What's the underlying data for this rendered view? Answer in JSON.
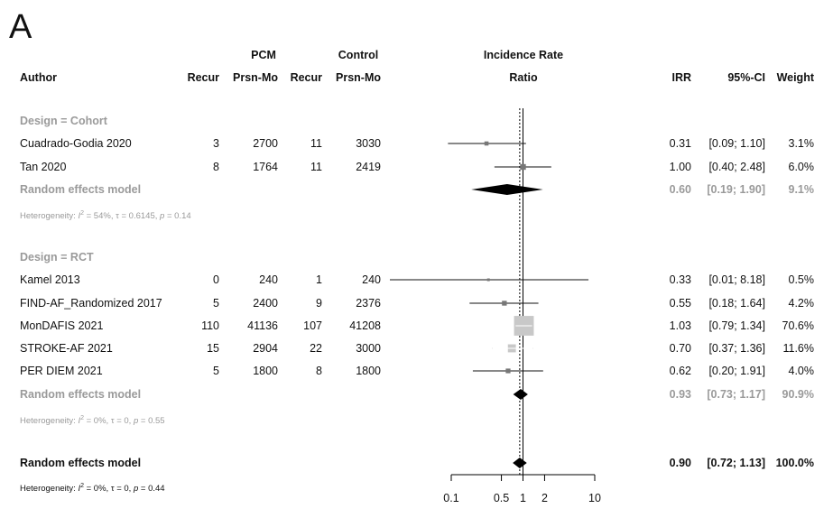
{
  "panel_label": "A",
  "headers": {
    "pcm": "PCM",
    "control": "Control",
    "irr_title_1": "Incidence Rate",
    "irr_title_2": "Ratio",
    "author": "Author",
    "recur_pcm": "Recur",
    "prsn_pcm": "Prsn-Mo",
    "recur_ctrl": "Recur",
    "prsn_ctrl": "Prsn-Mo",
    "irr": "IRR",
    "ci": "95%-CI",
    "weight": "Weight"
  },
  "chart_data": {
    "type": "forest",
    "x_scale": "log",
    "xlim": [
      0.1,
      10
    ],
    "ticks": [
      {
        "v": 0.1,
        "label": "0.1"
      },
      {
        "v": 0.5,
        "label": "0.5"
      },
      {
        "v": 1,
        "label": "1"
      },
      {
        "v": 2,
        "label": "2"
      },
      {
        "v": 10,
        "label": "10"
      }
    ],
    "null_line": 1,
    "overall_line": 0.9,
    "groups": [
      {
        "label": "Design = Cohort",
        "studies": [
          {
            "author": "Cuadrado-Godia 2020",
            "pcm_recur": "3",
            "pcm_prsn": "2700",
            "ctrl_recur": "11",
            "ctrl_prsn": "3030",
            "irr": 0.31,
            "lo": 0.09,
            "hi": 1.1,
            "irr_text": "0.31",
            "ci_text": "[0.09; 1.10]",
            "weight_text": "3.1%",
            "weight": 3.1
          },
          {
            "author": "Tan 2020",
            "pcm_recur": "8",
            "pcm_prsn": "1764",
            "ctrl_recur": "11",
            "ctrl_prsn": "2419",
            "irr": 1.0,
            "lo": 0.4,
            "hi": 2.48,
            "irr_text": "1.00",
            "ci_text": "[0.40; 2.48]",
            "weight_text": "6.0%",
            "weight": 6.0
          }
        ],
        "model": {
          "label": "Random effects model",
          "irr": 0.6,
          "lo": 0.19,
          "hi": 1.9,
          "irr_text": "0.60",
          "ci_text": "[0.19; 1.90]",
          "weight_text": "9.1%"
        },
        "heterogeneity": {
          "prefix": "Heterogeneity: ",
          "i2": "I",
          "rest": " = 54%, τ = 0.6145, ",
          "p": "p",
          "pval": " = 0.14"
        }
      },
      {
        "label": "Design = RCT",
        "studies": [
          {
            "author": "Kamel 2013",
            "pcm_recur": "0",
            "pcm_prsn": "240",
            "ctrl_recur": "1",
            "ctrl_prsn": "240",
            "irr": 0.33,
            "lo": 0.01,
            "hi": 8.18,
            "irr_text": "0.33",
            "ci_text": "[0.01; 8.18]",
            "weight_text": "0.5%",
            "weight": 0.5
          },
          {
            "author": "FIND-AF_Randomized 2017",
            "pcm_recur": "5",
            "pcm_prsn": "2400",
            "ctrl_recur": "9",
            "ctrl_prsn": "2376",
            "irr": 0.55,
            "lo": 0.18,
            "hi": 1.64,
            "irr_text": "0.55",
            "ci_text": "[0.18; 1.64]",
            "weight_text": "4.2%",
            "weight": 4.2
          },
          {
            "author": "MonDAFIS 2021",
            "pcm_recur": "110",
            "pcm_prsn": "41136",
            "ctrl_recur": "107",
            "ctrl_prsn": "41208",
            "irr": 1.03,
            "lo": 0.79,
            "hi": 1.34,
            "irr_text": "1.03",
            "ci_text": "[0.79; 1.34]",
            "weight_text": "70.6%",
            "weight": 70.6
          },
          {
            "author": "STROKE-AF 2021",
            "pcm_recur": "15",
            "pcm_prsn": "2904",
            "ctrl_recur": "22",
            "ctrl_prsn": "3000",
            "irr": 0.7,
            "lo": 0.37,
            "hi": 1.36,
            "irr_text": "0.70",
            "ci_text": "[0.37; 1.36]",
            "weight_text": "11.6%",
            "weight": 11.6
          },
          {
            "author": "PER DIEM 2021",
            "pcm_recur": "5",
            "pcm_prsn": "1800",
            "ctrl_recur": "8",
            "ctrl_prsn": "1800",
            "irr": 0.62,
            "lo": 0.2,
            "hi": 1.91,
            "irr_text": "0.62",
            "ci_text": "[0.20; 1.91]",
            "weight_text": "4.0%",
            "weight": 4.0
          }
        ],
        "model": {
          "label": "Random effects model",
          "irr": 0.93,
          "lo": 0.73,
          "hi": 1.17,
          "irr_text": "0.93",
          "ci_text": "[0.73; 1.17]",
          "weight_text": "90.9%"
        },
        "heterogeneity": {
          "prefix": "Heterogeneity: ",
          "i2": "I",
          "rest": " = 0%, τ = 0, ",
          "p": "p",
          "pval": " = 0.55"
        }
      }
    ],
    "overall": {
      "label": "Random effects model",
      "irr": 0.9,
      "lo": 0.72,
      "hi": 1.13,
      "irr_text": "0.90",
      "ci_text": "[0.72; 1.13]",
      "weight_text": "100.0%",
      "heterogeneity": {
        "prefix": "Heterogeneity: ",
        "i2": "I",
        "rest": " = 0%, τ = 0, ",
        "p": "p",
        "pval": " = 0.44"
      }
    },
    "colors": {
      "study": "#111111",
      "square_big": "#c8c8c8",
      "model_grey": "#9a9a9a",
      "diamond": "#000000"
    }
  }
}
